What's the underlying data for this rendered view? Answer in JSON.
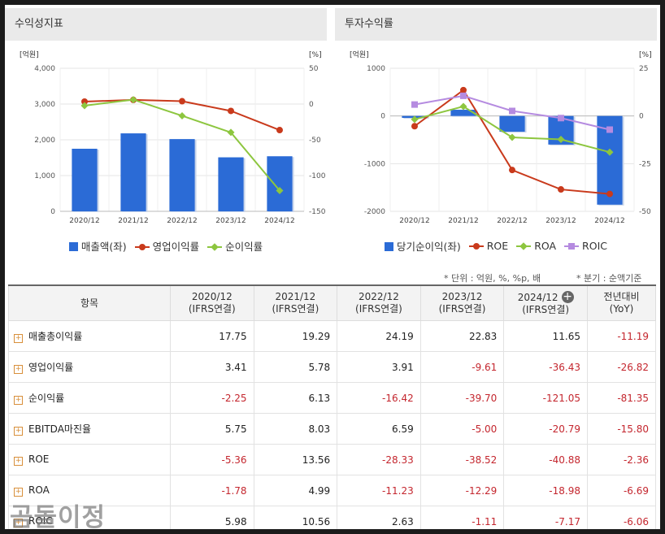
{
  "left_panel": {
    "title": "수익성지표",
    "legend": [
      {
        "label": "매출액(좌)",
        "shape": "square",
        "color": "#2b6bd6"
      },
      {
        "label": "영업이익률",
        "shape": "circle",
        "color": "#c93a1c"
      },
      {
        "label": "순이익률",
        "shape": "diamond",
        "color": "#8dc63f"
      }
    ]
  },
  "right_panel": {
    "title": "투자수익률",
    "legend": [
      {
        "label": "당기순이익(좌)",
        "shape": "square",
        "color": "#2b6bd6"
      },
      {
        "label": "ROE",
        "shape": "circle",
        "color": "#c93a1c"
      },
      {
        "label": "ROA",
        "shape": "diamond",
        "color": "#8dc63f"
      },
      {
        "label": "ROIC",
        "shape": "square-marker",
        "color": "#b58be0"
      }
    ]
  },
  "chart_data": [
    {
      "type": "bar",
      "categories": [
        "2020/12",
        "2021/12",
        "2022/12",
        "2023/12",
        "2024/12"
      ],
      "left_axis": {
        "unit": "[억원]",
        "ylim": [
          0,
          4000
        ],
        "ticks": [
          "4,000",
          "3,000",
          "2,000",
          "1,000",
          "0"
        ]
      },
      "right_axis": {
        "unit": "[%]",
        "ylim": [
          -150,
          50
        ],
        "ticks": [
          "50",
          "0",
          "-50",
          "-100",
          "-150"
        ]
      },
      "series": [
        {
          "name": "매출액(좌)",
          "kind": "bar",
          "axis": "left",
          "color": "#2b6bd6",
          "values": [
            1750,
            2180,
            2020,
            1510,
            1540
          ]
        },
        {
          "name": "영업이익률",
          "kind": "line",
          "axis": "right",
          "marker": "circle",
          "color": "#c93a1c",
          "values": [
            3.41,
            5.78,
            3.91,
            -9.61,
            -36.43
          ]
        },
        {
          "name": "순이익률",
          "kind": "line",
          "axis": "right",
          "marker": "diamond",
          "color": "#8dc63f",
          "values": [
            -2.25,
            6.13,
            -16.42,
            -39.7,
            -121.05
          ]
        }
      ],
      "grid": true
    },
    {
      "type": "bar",
      "categories": [
        "2020/12",
        "2021/12",
        "2022/12",
        "2023/12",
        "2024/12"
      ],
      "left_axis": {
        "unit": "[억원]",
        "ylim": [
          -2000,
          1000
        ],
        "ticks": [
          "1000",
          "0",
          "-1000",
          "-2000"
        ]
      },
      "right_axis": {
        "unit": "[%]",
        "ylim": [
          -50,
          25
        ],
        "ticks": [
          "25",
          "0",
          "-25",
          "-50"
        ]
      },
      "series": [
        {
          "name": "당기순이익(좌)",
          "kind": "bar",
          "axis": "left",
          "color": "#2b6bd6",
          "values": [
            -40,
            130,
            -330,
            -600,
            -1860
          ]
        },
        {
          "name": "ROE",
          "kind": "line",
          "axis": "right",
          "marker": "circle",
          "color": "#c93a1c",
          "values": [
            -5.36,
            13.56,
            -28.33,
            -38.52,
            -40.88
          ]
        },
        {
          "name": "ROA",
          "kind": "line",
          "axis": "right",
          "marker": "diamond",
          "color": "#8dc63f",
          "values": [
            -1.78,
            4.99,
            -11.23,
            -12.29,
            -18.98
          ]
        },
        {
          "name": "ROIC",
          "kind": "line",
          "axis": "right",
          "marker": "square",
          "color": "#b58be0",
          "values": [
            5.98,
            10.56,
            2.63,
            -1.11,
            -7.17
          ]
        }
      ],
      "grid": true
    }
  ],
  "notes": {
    "unit": "* 단위 : 억원, %, %p, 배",
    "quarter": "* 분기 : 순액기준"
  },
  "table": {
    "item_header": "항목",
    "columns": [
      {
        "line1": "2020/12",
        "line2": "(IFRS연결)"
      },
      {
        "line1": "2021/12",
        "line2": "(IFRS연결)"
      },
      {
        "line1": "2022/12",
        "line2": "(IFRS연결)"
      },
      {
        "line1": "2023/12",
        "line2": "(IFRS연결)"
      },
      {
        "line1": "2024/12",
        "line2": "(IFRS연결)"
      },
      {
        "line1": "전년대비",
        "line2": "(YoY)"
      }
    ],
    "rows": [
      {
        "label": "매출총이익률",
        "cells": [
          "17.75",
          "19.29",
          "24.19",
          "22.83",
          "11.65",
          "-11.19"
        ]
      },
      {
        "label": "영업이익률",
        "cells": [
          "3.41",
          "5.78",
          "3.91",
          "-9.61",
          "-36.43",
          "-26.82"
        ]
      },
      {
        "label": "순이익률",
        "cells": [
          "-2.25",
          "6.13",
          "-16.42",
          "-39.70",
          "-121.05",
          "-81.35"
        ]
      },
      {
        "label": "EBITDA마진율",
        "cells": [
          "5.75",
          "8.03",
          "6.59",
          "-5.00",
          "-20.79",
          "-15.80"
        ]
      },
      {
        "label": "ROE",
        "cells": [
          "-5.36",
          "13.56",
          "-28.33",
          "-38.52",
          "-40.88",
          "-2.36"
        ]
      },
      {
        "label": "ROA",
        "cells": [
          "-1.78",
          "4.99",
          "-11.23",
          "-12.29",
          "-18.98",
          "-6.69"
        ]
      },
      {
        "label": "ROIC",
        "cells": [
          "5.98",
          "10.56",
          "2.63",
          "-1.11",
          "-7.17",
          "-6.06"
        ]
      }
    ]
  },
  "watermark": "곰돌이정"
}
